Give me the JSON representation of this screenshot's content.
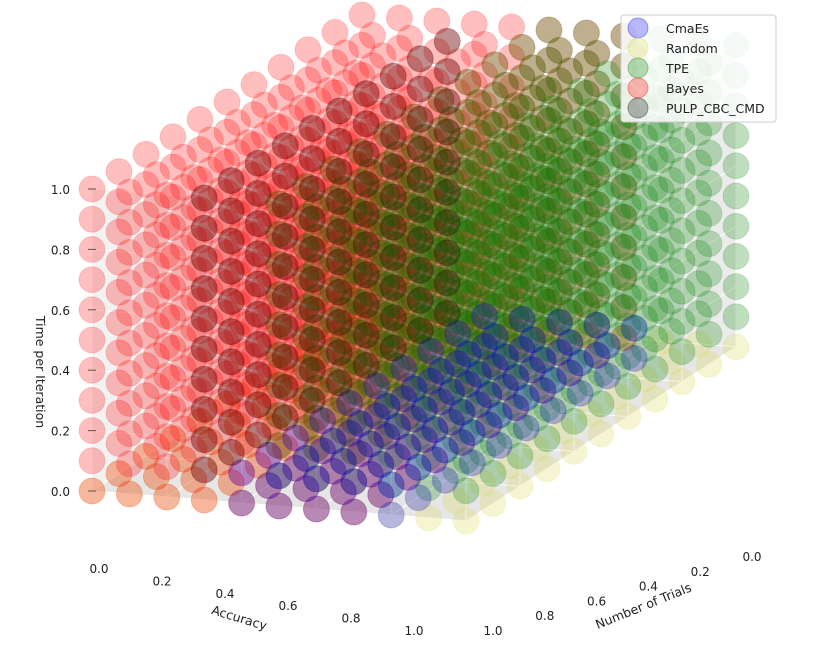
{
  "chart_data": {
    "type": "scatter",
    "projection": "3d",
    "xlabel": "Accuracy",
    "ylabel": "Number of Trials",
    "zlabel": "Time per Iteration",
    "xlim": [
      0,
      1
    ],
    "ylim": [
      0,
      1
    ],
    "zlim": [
      0,
      1
    ],
    "x_ticks": [
      "0.0",
      "0.2",
      "0.4",
      "0.6",
      "0.8",
      "1.0"
    ],
    "y_ticks": [
      "0.0",
      "0.2",
      "0.4",
      "0.6",
      "0.8",
      "1.0"
    ],
    "z_ticks": [
      "0.0",
      "0.2",
      "0.4",
      "0.6",
      "0.8",
      "1.0"
    ],
    "grid": true,
    "legend_position": "top-right",
    "marker_alpha": 0.25,
    "grid_steps": [
      0,
      0.1,
      0.2,
      0.3,
      0.4,
      0.5,
      0.6,
      0.7,
      0.8,
      0.9,
      1.0
    ],
    "series": [
      {
        "name": "CmaEs",
        "color": "#0000ff",
        "region": {
          "accuracy": [
            0.2,
            0.6
          ],
          "trials": [
            0.0,
            0.9
          ],
          "time": [
            0.0,
            0.1
          ]
        }
      },
      {
        "name": "Random",
        "color": "#d8d84a",
        "region": {
          "accuracy": [
            0.0,
            1.0
          ],
          "trials": [
            0.0,
            1.0
          ],
          "time": [
            0.0,
            0.0
          ]
        }
      },
      {
        "name": "TPE",
        "color": "#008000",
        "region": {
          "accuracy": [
            0.0,
            0.5
          ],
          "trials": [
            0.0,
            1.0
          ],
          "time": [
            0.1,
            1.0
          ]
        }
      },
      {
        "name": "Bayes",
        "color": "#ff0000",
        "region": {
          "accuracy": [
            0.3,
            1.0
          ],
          "trials": [
            0.0,
            1.0
          ],
          "time": [
            0.0,
            1.0
          ]
        }
      },
      {
        "name": "PULP_CBC_CMD",
        "color": "#000000",
        "region": {
          "accuracy": [
            0.7,
            0.7
          ],
          "trials": [
            0.0,
            0.9
          ],
          "time": [
            0.1,
            1.0
          ]
        }
      }
    ]
  }
}
